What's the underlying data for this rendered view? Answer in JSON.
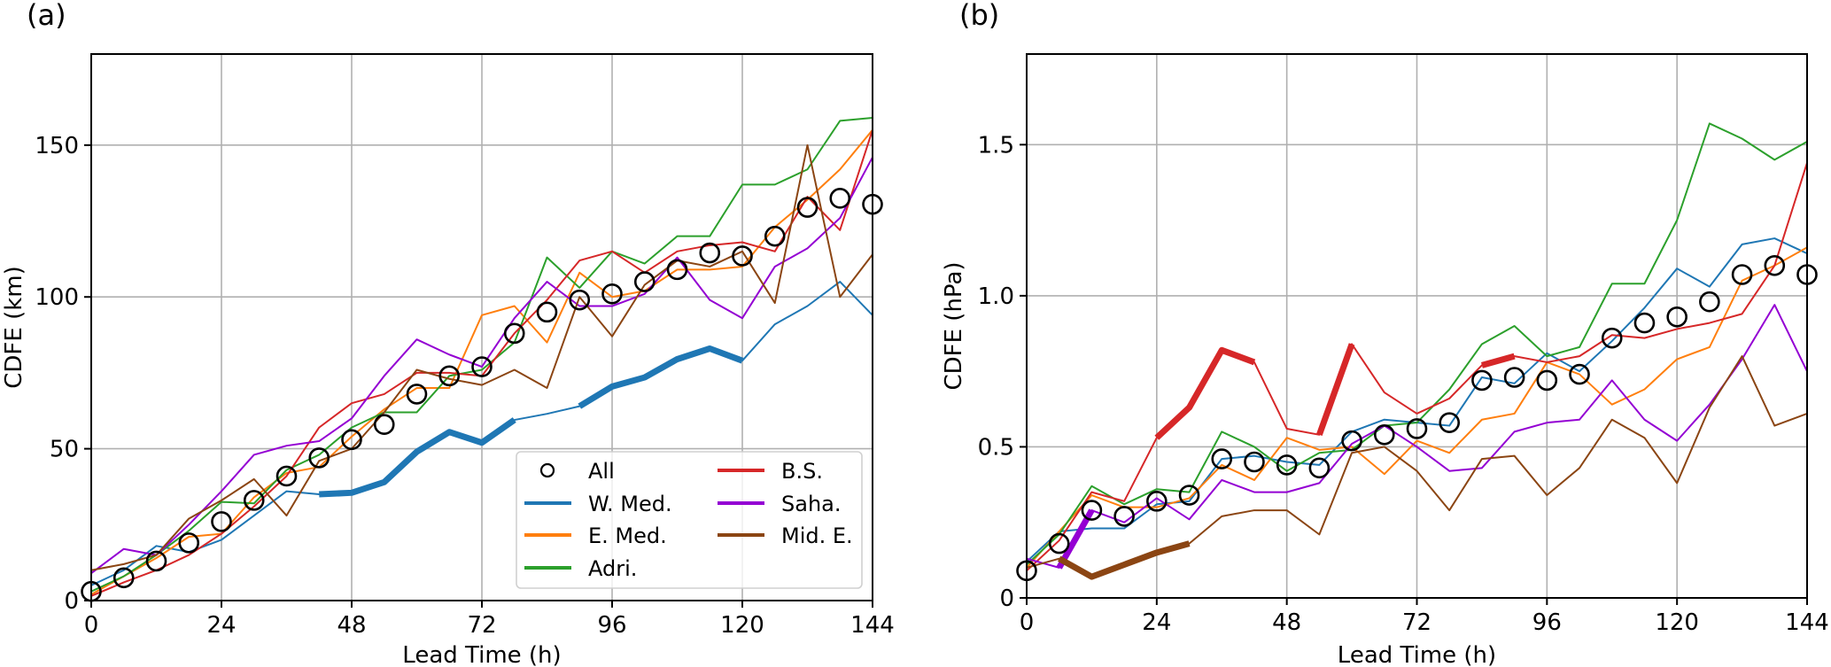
{
  "chart_data": [
    {
      "type": "line",
      "panel_label": "(a)",
      "title": "",
      "xlabel": "Lead Time (h)",
      "ylabel": "CDFE (km)",
      "xlim": [
        0,
        144
      ],
      "ylim": [
        0,
        180
      ],
      "xticks": [
        0,
        24,
        48,
        72,
        96,
        120,
        144
      ],
      "yticks": [
        0,
        50,
        100,
        150
      ],
      "grid": true,
      "legend_placement": "lower-right",
      "legend_columns": 2,
      "x": [
        0,
        6,
        12,
        18,
        24,
        30,
        36,
        42,
        48,
        54,
        60,
        66,
        72,
        78,
        84,
        90,
        96,
        102,
        108,
        114,
        120,
        126,
        132,
        138,
        144
      ],
      "markers": {
        "name": "All",
        "style": "open-circle",
        "color": "#000000",
        "values": [
          3,
          7.5,
          13,
          19,
          26,
          33,
          41,
          47,
          53,
          58,
          68,
          74,
          77,
          88,
          95,
          99,
          101,
          105,
          109,
          114.5,
          113.5,
          120,
          129.5,
          132.5,
          130.5
        ]
      },
      "series": [
        {
          "name": "W. Med.",
          "color": "#1f77b4",
          "values": [
            5,
            10,
            18,
            16,
            20,
            28,
            36,
            35,
            35.5,
            39,
            49,
            55.5,
            52,
            59.5,
            61.5,
            64,
            70.5,
            73.5,
            79.5,
            83,
            79,
            91,
            97,
            105,
            94
          ],
          "thick_ranges": [
            [
              42,
              78
            ],
            [
              90,
              120
            ]
          ]
        },
        {
          "name": "E. Med.",
          "color": "#ff7f0e",
          "values": [
            2,
            8,
            14,
            21,
            22,
            34,
            42,
            44,
            54,
            63,
            70,
            70,
            94,
            97,
            85,
            108,
            100,
            102,
            109,
            109,
            110,
            123,
            132,
            142,
            155
          ],
          "thick_ranges": []
        },
        {
          "name": "Adri.",
          "color": "#2ca02c",
          "values": [
            3,
            8,
            15,
            23,
            32.5,
            32,
            43,
            48,
            57,
            62,
            62,
            74,
            76,
            85,
            113,
            103,
            115,
            111,
            120,
            120,
            137,
            137,
            142,
            158,
            159
          ],
          "thick_ranges": []
        },
        {
          "name": "B.S.",
          "color": "#d62728",
          "values": [
            1.5,
            6,
            10,
            15,
            22,
            31,
            41,
            57,
            65,
            68,
            75,
            75,
            74,
            88,
            99,
            112,
            115,
            108,
            115,
            117,
            118,
            115,
            133,
            122,
            155
          ],
          "thick_ranges": []
        },
        {
          "name": "Saha.",
          "color": "#9400d3",
          "values": [
            9,
            17,
            15,
            25,
            36,
            48,
            51,
            52.5,
            60,
            74,
            86,
            81,
            77,
            93,
            105,
            97,
            97,
            101,
            113,
            99,
            93,
            110,
            116,
            126,
            146
          ],
          "thick_ranges": []
        },
        {
          "name": "Mid. E.",
          "color": "#8b4513",
          "values": [
            10,
            12,
            15,
            27,
            33,
            40,
            28,
            46,
            50,
            62,
            76,
            73,
            71,
            76,
            70,
            100,
            87,
            104,
            112,
            110,
            115,
            98,
            150,
            100,
            114
          ],
          "thick_ranges": []
        }
      ]
    },
    {
      "type": "line",
      "panel_label": "(b)",
      "title": "",
      "xlabel": "Lead Time (h)",
      "ylabel": "CDFE (hPa)",
      "xlim": [
        0,
        144
      ],
      "ylim": [
        0,
        1.8
      ],
      "xticks": [
        0,
        24,
        48,
        72,
        96,
        120,
        144
      ],
      "yticks": [
        0,
        0.5,
        1.0,
        1.5
      ],
      "ytick_labels": [
        "0",
        "0.5",
        "1.0",
        "1.5"
      ],
      "grid": true,
      "legend_placement": "none",
      "x": [
        0,
        6,
        12,
        18,
        24,
        30,
        36,
        42,
        48,
        54,
        60,
        66,
        72,
        78,
        84,
        90,
        96,
        102,
        108,
        114,
        120,
        126,
        132,
        138,
        144
      ],
      "markers": {
        "name": "All",
        "style": "open-circle",
        "color": "#000000",
        "values": [
          0.09,
          0.18,
          0.29,
          0.27,
          0.32,
          0.34,
          0.46,
          0.45,
          0.44,
          0.43,
          0.52,
          0.54,
          0.56,
          0.58,
          0.72,
          0.73,
          0.72,
          0.74,
          0.86,
          0.91,
          0.93,
          0.98,
          1.07,
          1.1,
          1.07
        ]
      },
      "series": [
        {
          "name": "W. Med.",
          "color": "#1f77b4",
          "values": [
            0.12,
            0.22,
            0.23,
            0.23,
            0.31,
            0.32,
            0.46,
            0.47,
            0.45,
            0.44,
            0.55,
            0.59,
            0.58,
            0.57,
            0.73,
            0.71,
            0.81,
            0.75,
            0.85,
            0.96,
            1.09,
            1.03,
            1.17,
            1.19,
            1.14
          ],
          "thick_ranges": []
        },
        {
          "name": "E. Med.",
          "color": "#ff7f0e",
          "values": [
            0.1,
            0.22,
            0.34,
            0.3,
            0.3,
            0.33,
            0.44,
            0.39,
            0.53,
            0.49,
            0.5,
            0.41,
            0.52,
            0.48,
            0.59,
            0.61,
            0.78,
            0.74,
            0.64,
            0.69,
            0.79,
            0.83,
            1.05,
            1.1,
            1.16
          ],
          "thick_ranges": []
        },
        {
          "name": "Adri.",
          "color": "#2ca02c",
          "values": [
            0.11,
            0.21,
            0.37,
            0.31,
            0.36,
            0.35,
            0.55,
            0.5,
            0.42,
            0.48,
            0.49,
            0.57,
            0.58,
            0.69,
            0.84,
            0.9,
            0.8,
            0.83,
            1.04,
            1.04,
            1.25,
            1.57,
            1.52,
            1.45,
            1.51
          ],
          "thick_ranges": []
        },
        {
          "name": "B.S.",
          "color": "#d62728",
          "values": [
            0.09,
            0.19,
            0.35,
            0.32,
            0.53,
            0.63,
            0.82,
            0.78,
            0.56,
            0.54,
            0.84,
            0.68,
            0.61,
            0.66,
            0.77,
            0.8,
            0.78,
            0.8,
            0.87,
            0.86,
            0.89,
            0.91,
            0.94,
            1.1,
            1.44
          ],
          "thick_ranges": [
            [
              24,
              42
            ],
            [
              54,
              60
            ],
            [
              84,
              90
            ]
          ]
        },
        {
          "name": "Saha.",
          "color": "#9400d3",
          "values": [
            0.13,
            0.1,
            0.29,
            0.25,
            0.33,
            0.26,
            0.39,
            0.35,
            0.35,
            0.38,
            0.51,
            0.57,
            0.5,
            0.42,
            0.43,
            0.55,
            0.58,
            0.59,
            0.72,
            0.59,
            0.52,
            0.64,
            0.79,
            0.97,
            0.75
          ],
          "thick_ranges": [
            [
              6,
              12
            ]
          ]
        },
        {
          "name": "Mid. E.",
          "color": "#8b4513",
          "values": [
            0.1,
            0.13,
            0.07,
            0.11,
            0.15,
            0.18,
            0.27,
            0.29,
            0.29,
            0.21,
            0.48,
            0.5,
            0.42,
            0.29,
            0.46,
            0.47,
            0.34,
            0.43,
            0.59,
            0.53,
            0.38,
            0.63,
            0.8,
            0.57,
            0.61
          ],
          "thick_ranges": [
            [
              6,
              30
            ]
          ]
        }
      ]
    }
  ],
  "legend": {
    "entries": [
      "All",
      "W. Med.",
      "E. Med.",
      "Adri.",
      "B.S.",
      "Saha.",
      "Mid. E."
    ]
  }
}
